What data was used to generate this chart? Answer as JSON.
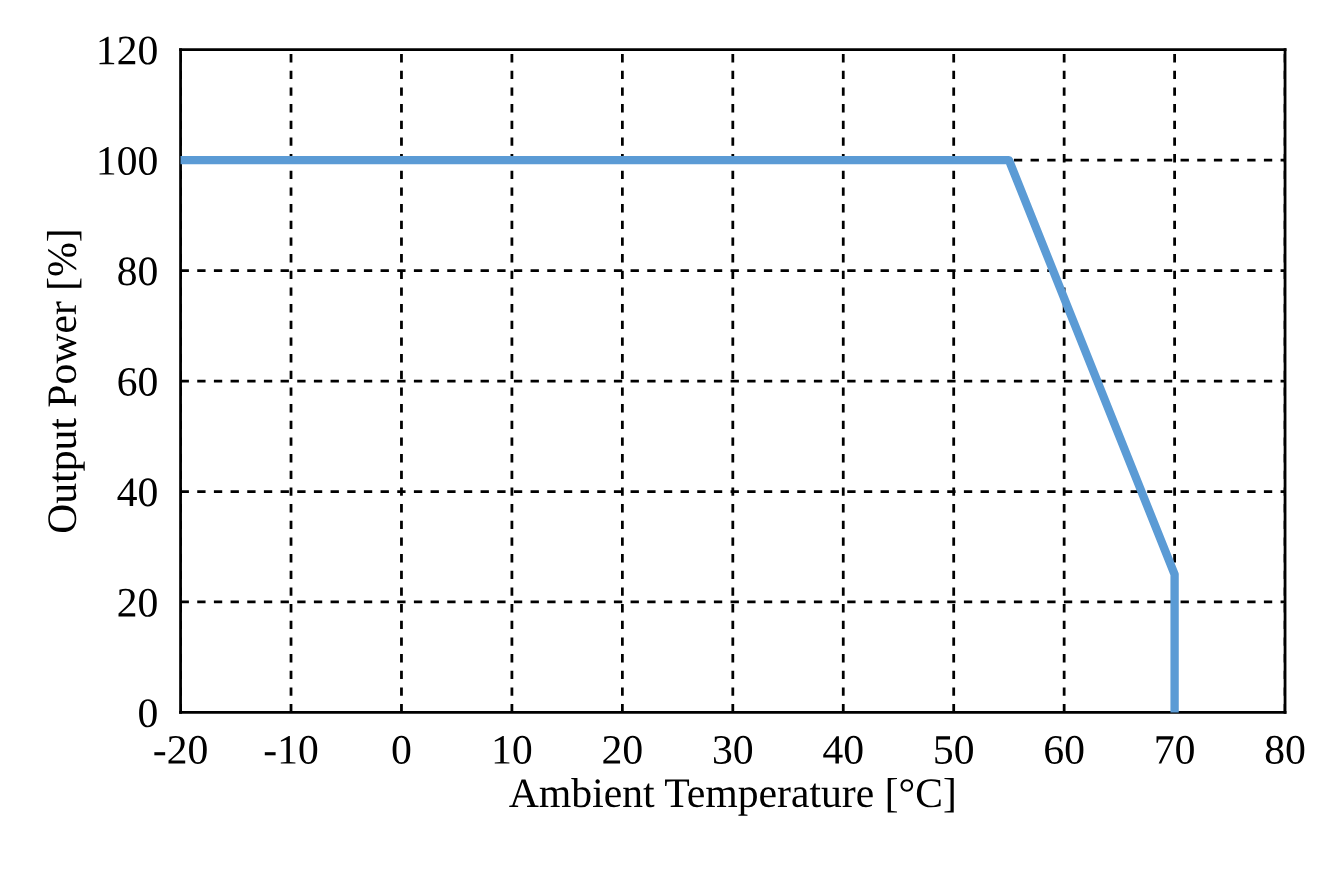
{
  "chart_data": {
    "type": "line",
    "xlabel": "Ambient Temperature [°C]",
    "ylabel": "Output Power [%]",
    "series": [
      {
        "x": [
          -20,
          55,
          70,
          70
        ],
        "values": [
          100,
          100,
          25,
          0
        ],
        "color": "#5b9bd5"
      }
    ],
    "xlim": [
      -20,
      80
    ],
    "xticks": [
      -20,
      -10,
      0,
      10,
      20,
      30,
      40,
      50,
      60,
      70,
      80
    ],
    "ylim": [
      0,
      120
    ],
    "yticks": [
      0,
      20,
      40,
      60,
      80,
      100,
      120
    ],
    "grid": true,
    "line_style": "solid",
    "marker": "none"
  }
}
